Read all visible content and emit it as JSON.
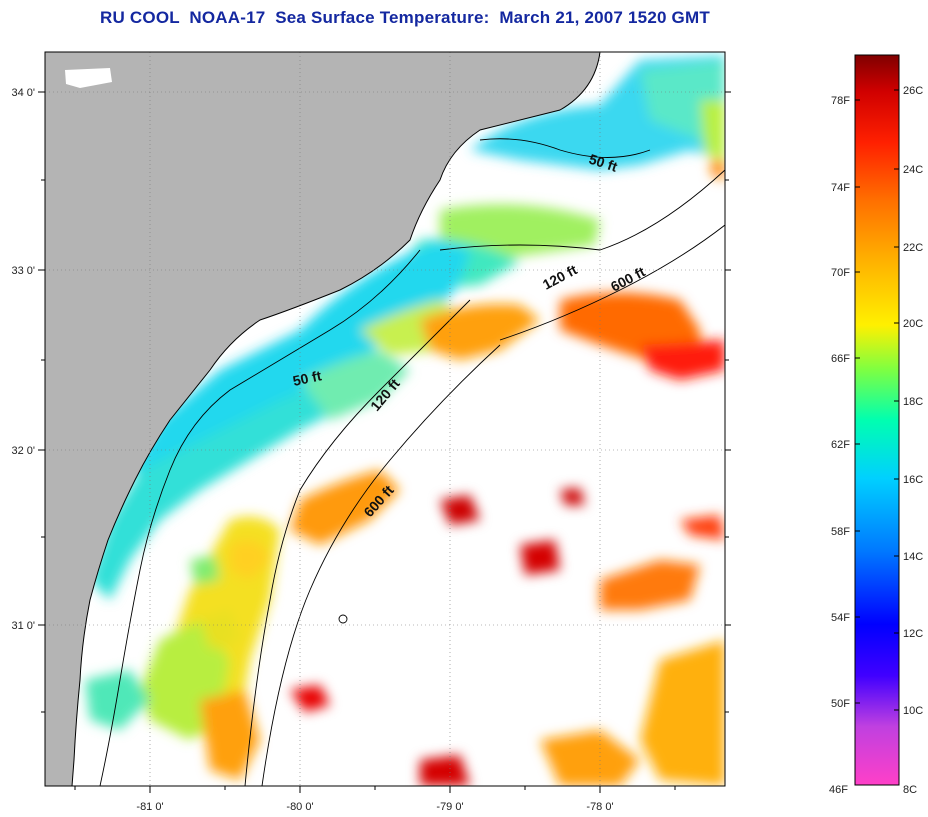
{
  "title": "RU COOL  NOAA-17  Sea Surface Temperature:  March 21, 2007 1520 GMT",
  "map": {
    "lon_ticks": [
      "-81 0'",
      "-80 0'",
      "-79 0'",
      "-78 0'"
    ],
    "lat_ticks": [
      "34 0'",
      "33 0'",
      "32 0'",
      "31 0'"
    ],
    "contours": [
      "50 ft",
      "50 ft",
      "120 ft",
      "120 ft",
      "600 ft",
      "600 ft"
    ],
    "land_color": "#b4b4b4",
    "cloud_color": "#ffffff",
    "grid": true
  },
  "colorbar": {
    "fahrenheit_labels": [
      "78F",
      "74F",
      "70F",
      "66F",
      "62F",
      "58F",
      "54F",
      "50F",
      "46F"
    ],
    "celsius_labels": [
      "26C",
      "24C",
      "22C",
      "20C",
      "18C",
      "16C",
      "14C",
      "12C",
      "10C",
      "8C"
    ],
    "scale_colors": [
      "#ff40c8",
      "#0000ff",
      "#00c8ff",
      "#00ffff",
      "#fff000",
      "#ff8000",
      "#ff0000",
      "#800000"
    ]
  }
}
